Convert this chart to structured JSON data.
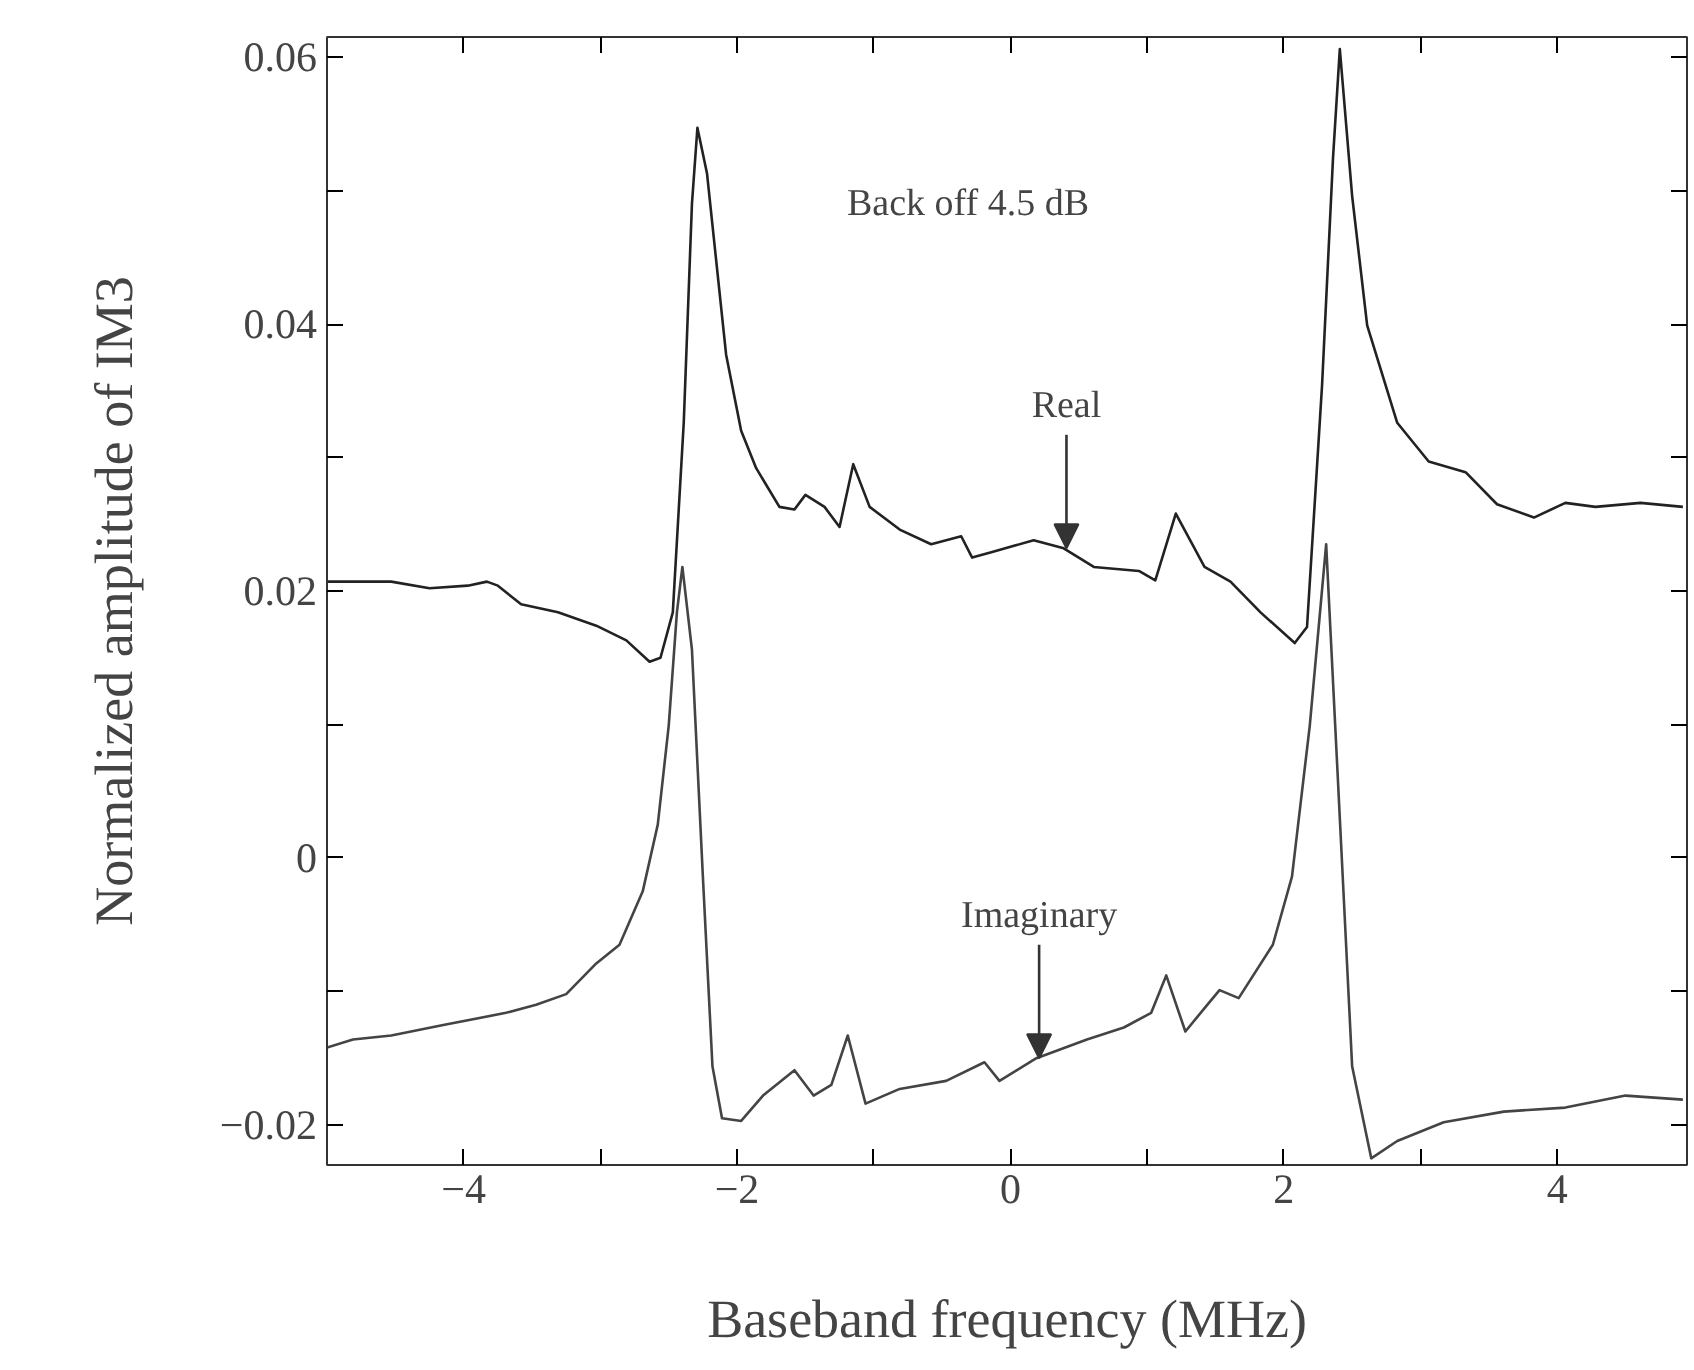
{
  "chart_data": {
    "type": "line",
    "xlabel": "Baseband frequency (MHz)",
    "ylabel": "Normalized amplitude of IM3",
    "xlim": [
      -5,
      4.95
    ],
    "ylim": [
      -0.023,
      0.0615
    ],
    "xticks": [
      {
        "value": -5,
        "label": null
      },
      -4,
      {
        "value": -3,
        "label": null
      },
      -2,
      {
        "value": -1,
        "label": null
      },
      0,
      {
        "value": 1,
        "label": null
      },
      2,
      {
        "value": 3,
        "label": null
      },
      4
    ],
    "yticks": [
      -0.02,
      {
        "value": -0.01,
        "label": null
      },
      0,
      {
        "value": 0.01,
        "label": null
      },
      0.02,
      {
        "value": 0.03,
        "label": null
      },
      0.04,
      {
        "value": 0.05,
        "label": null
      },
      0.06
    ],
    "grid": false,
    "marker": "none",
    "line_style": "solid",
    "annotations": [
      "Back off 4.5 dB",
      {
        "text": "Real",
        "x": 0.41,
        "y": 0.0232
      },
      {
        "text": "Imaginary",
        "x": 0.21,
        "y": -0.015
      }
    ],
    "series": [
      {
        "color": "#222222",
        "x": [
          -5,
          -4.81,
          -4.53,
          -4.25,
          -3.97,
          -3.83,
          -3.75,
          -3.58,
          -3.31,
          -3.03,
          -2.81,
          -2.64,
          -2.56,
          -2.47,
          -2.39,
          -2.33,
          -2.29,
          -2.22,
          -2.08,
          -1.97,
          -1.86,
          -1.69,
          -1.58,
          -1.5,
          -1.36,
          -1.25,
          -1.15,
          -1.03,
          -0.81,
          -0.58,
          -0.36,
          -0.28,
          -0.14,
          0.17,
          0.39,
          0.61,
          0.94,
          1.06,
          1.21,
          1.42,
          1.61,
          1.83,
          2.08,
          2.17,
          2.28,
          2.36,
          2.41,
          2.5,
          2.61,
          2.83,
          3.06,
          3.33,
          3.56,
          3.83,
          4.06,
          4.28,
          4.61,
          4.92
        ],
        "values": [
          0.0207,
          0.0207,
          0.0207,
          0.0202,
          0.0204,
          0.0207,
          0.0204,
          0.019,
          0.0184,
          0.0174,
          0.0163,
          0.0147,
          0.015,
          0.0184,
          0.0326,
          0.049,
          0.0547,
          0.0513,
          0.0377,
          0.032,
          0.0292,
          0.0263,
          0.0261,
          0.0272,
          0.0263,
          0.0248,
          0.0295,
          0.0263,
          0.0246,
          0.0235,
          0.0241,
          0.0225,
          0.0229,
          0.0238,
          0.0232,
          0.0218,
          0.0215,
          0.0208,
          0.0258,
          0.0218,
          0.0207,
          0.0184,
          0.0161,
          0.0173,
          0.0354,
          0.0524,
          0.0606,
          0.0496,
          0.0399,
          0.0326,
          0.0297,
          0.0289,
          0.0265,
          0.0255,
          0.0266,
          0.0263,
          0.0266,
          0.0263
        ]
      },
      {
        "color": "#444444",
        "x": [
          -5,
          -4.81,
          -4.53,
          -4.14,
          -3.69,
          -3.47,
          -3.25,
          -3.03,
          -2.86,
          -2.69,
          -2.58,
          -2.5,
          -2.44,
          -2.4,
          -2.33,
          -2.25,
          -2.18,
          -2.11,
          -1.97,
          -1.81,
          -1.58,
          -1.44,
          -1.31,
          -1.19,
          -1.06,
          -0.81,
          -0.47,
          -0.19,
          -0.08,
          0.19,
          0.56,
          0.83,
          1.03,
          1.14,
          1.28,
          1.44,
          1.53,
          1.67,
          1.92,
          2.06,
          2.19,
          2.31,
          2.39,
          2.5,
          2.64,
          2.83,
          3.17,
          3.61,
          4.06,
          4.5,
          4.92
        ],
        "values": [
          -0.0142,
          -0.0136,
          -0.0133,
          -0.0125,
          -0.0116,
          -0.011,
          -0.0102,
          -0.0079,
          -0.0065,
          -0.0025,
          0.0025,
          0.0099,
          0.0184,
          0.0218,
          0.0156,
          -0.0014,
          -0.0156,
          -0.0195,
          -0.0197,
          -0.0178,
          -0.0159,
          -0.0178,
          -0.017,
          -0.0133,
          -0.0184,
          -0.0173,
          -0.0167,
          -0.0153,
          -0.0167,
          -0.015,
          -0.0136,
          -0.0127,
          -0.0116,
          -0.0088,
          -0.013,
          -0.011,
          -0.0099,
          -0.0105,
          -0.0065,
          -0.0014,
          0.0099,
          0.0235,
          0.0071,
          -0.0156,
          -0.0225,
          -0.0212,
          -0.0198,
          -0.019,
          -0.0187,
          -0.0178,
          -0.0181
        ]
      }
    ]
  }
}
